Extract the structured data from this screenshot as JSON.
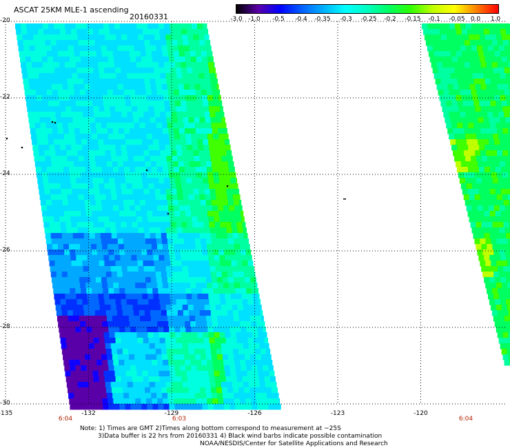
{
  "header": {
    "title": "ASCAT 25KM MLE-1 ascending",
    "date": "20160331"
  },
  "colorbar": {
    "labels": [
      "-3.0",
      "-1.0",
      "-0.5",
      "-0.4",
      "-0.35",
      "-0.3",
      "-0.25",
      "-0.2",
      "-0.15",
      "-0.1",
      "-0.05",
      "0.0",
      "1.0"
    ],
    "colors": [
      "#000000",
      "#5a00a8",
      "#0000ff",
      "#0060ff",
      "#00b0ff",
      "#00ffff",
      "#00ffc0",
      "#00ff60",
      "#30ff00",
      "#c0ff00",
      "#ffff00",
      "#ff8000",
      "#ff0000"
    ]
  },
  "map": {
    "lat_ticks": [
      "-20",
      "-22",
      "-24",
      "-26",
      "-28",
      "-30"
    ],
    "lon_ticks": [
      "-135",
      "-132",
      "-129",
      "-126",
      "-123",
      "-120"
    ],
    "times": [
      "6:04",
      "6:03",
      "6:04"
    ]
  },
  "footer": {
    "line1": "Note: 1) Times are GMT 2)Times along bottom correspond to measurement at ~25S",
    "line2": "3)Data buffer is 22 hrs from 20160331 4) Black wind barbs indicate possible contamination",
    "line3": "NOAA/NESDIS/Center for Satellite Applications and Research"
  }
}
